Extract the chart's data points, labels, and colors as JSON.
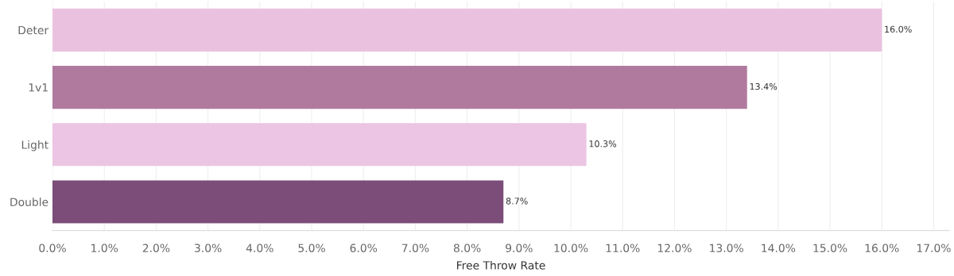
{
  "chart_data": {
    "type": "bar",
    "orientation": "horizontal",
    "xlabel": "Free Throw Rate",
    "categories": [
      "Deter",
      "1v1",
      "Light",
      "Double"
    ],
    "values": [
      16.0,
      13.4,
      10.3,
      8.7
    ],
    "colors": [
      "#ebc1e0",
      "#b07a9e",
      "#ebc5e3",
      "#7b4d78"
    ],
    "value_labels": [
      "16.0%",
      "13.4%",
      "10.3%",
      "8.7%"
    ],
    "xlim": [
      0,
      17.3
    ],
    "xticks": [
      {
        "value": 0,
        "label": "0.0%"
      },
      {
        "value": 1,
        "label": "1.0%"
      },
      {
        "value": 2,
        "label": "2.0%"
      },
      {
        "value": 3,
        "label": "3.0%"
      },
      {
        "value": 4,
        "label": "4.0%"
      },
      {
        "value": 5,
        "label": "5.0%"
      },
      {
        "value": 6,
        "label": "6.0%"
      },
      {
        "value": 7,
        "label": "7.0%"
      },
      {
        "value": 8,
        "label": "8.0%"
      },
      {
        "value": 9,
        "label": "9.0%"
      },
      {
        "value": 10,
        "label": "10.0%"
      },
      {
        "value": 11,
        "label": "11.0%"
      },
      {
        "value": 12,
        "label": "12.0%"
      },
      {
        "value": 13,
        "label": "13.0%"
      },
      {
        "value": 14,
        "label": "14.0%"
      },
      {
        "value": 15,
        "label": "15.0%"
      },
      {
        "value": 16,
        "label": "16.0%"
      },
      {
        "value": 17,
        "label": "17.0%"
      }
    ],
    "grid": "x",
    "legend": false
  }
}
